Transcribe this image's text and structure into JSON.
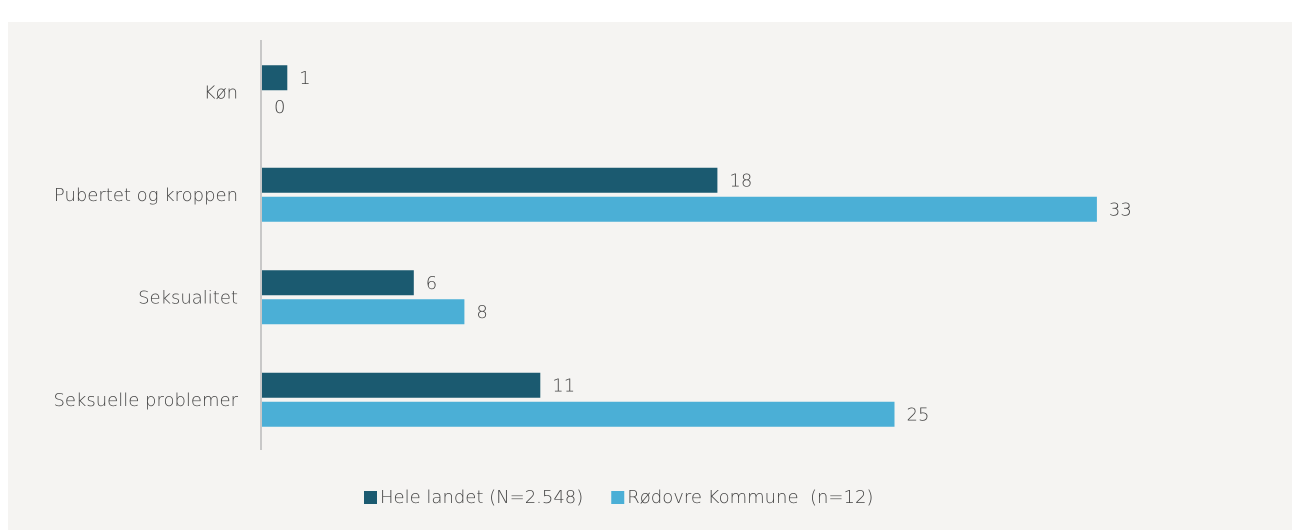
{
  "chart_data": {
    "type": "barh",
    "categories": [
      "Køn",
      "Pubertet og kroppen",
      "Seksualitet",
      "Seksuelle problemer"
    ],
    "series": [
      {
        "name": "Hele landet (N=2.548)",
        "color": "#1b5a70",
        "values": [
          1,
          18,
          6,
          11
        ]
      },
      {
        "name": "Rødovre Kommune  (n=12)",
        "color": "#4bafd6",
        "values": [
          0,
          33,
          8,
          25
        ]
      }
    ],
    "xlim": [
      0,
      40
    ],
    "legend": "bottom"
  }
}
